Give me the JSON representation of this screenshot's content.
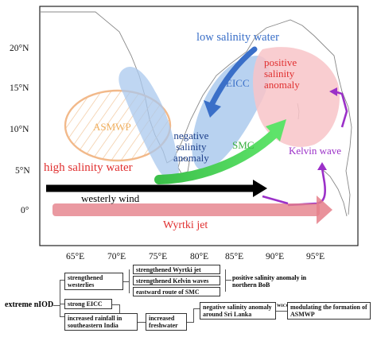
{
  "map": {
    "y_ticks": [
      "20°N",
      "15°N",
      "10°N",
      "5°N",
      "0°"
    ],
    "x_ticks": [
      "65°E",
      "70°E",
      "75°E",
      "80°E",
      "85°E",
      "90°E",
      "95°E"
    ],
    "labels": {
      "low_salinity_water": "low salinity water",
      "eicc": "EICC",
      "positive_salinity_anomaly": [
        "positive",
        "salinity",
        "anomaly"
      ],
      "asmwp": "ASMWP",
      "negative_salinity_anomaly": [
        "negative",
        "salinity",
        "anomaly"
      ],
      "smc": "SMC",
      "kelvin_wave": "Kelvin wave",
      "high_salinity_water": "high salinity water",
      "westerly_wind": "westerly wind",
      "wyrtki_jet": "Wyrtki jet"
    },
    "colors": {
      "blue_label": "#3a6fc8",
      "red_label": "#e03030",
      "green_label": "#3cb043",
      "orange_label": "#f0b060",
      "purple_label": "#9b30c8",
      "black_label": "#000000"
    }
  },
  "flow": {
    "root": "extreme nIOD",
    "strengthened_westerlies": [
      "strengthened",
      "westerlies"
    ],
    "strengthened_wyrtki": "strengthened Wyrtki jet",
    "strengthened_kelvin": "strengthened Kelvin waves",
    "eastward_route": "eastward route of SMC",
    "positive_anomaly_bob": [
      "positive salinity anomaly in",
      "northern BoB"
    ],
    "strong_eicc": "strong EICC",
    "increased_rainfall": [
      "increased rainfall in",
      "southeastern India"
    ],
    "increased_freshwater": [
      "increased",
      "freshwater"
    ],
    "negative_anomaly_sl": [
      "negative salinity anomaly",
      "around Sri Lanka"
    ],
    "wicc": "WICC",
    "modulating": [
      "modulating the formation of",
      "ASMWP"
    ]
  }
}
